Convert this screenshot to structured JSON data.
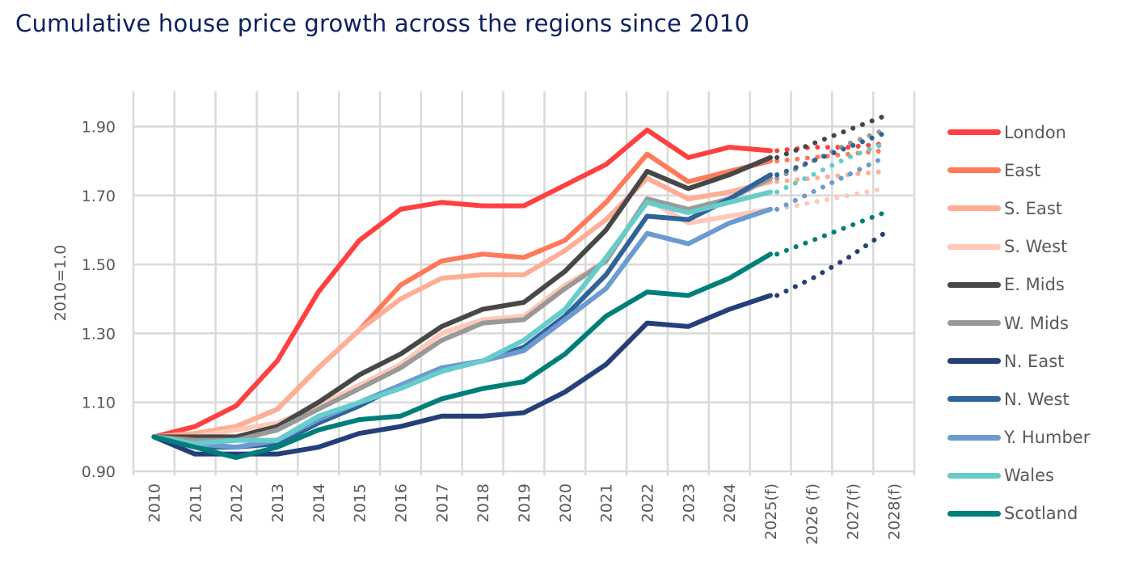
{
  "title": "Cumulative house price growth across the regions since 2010",
  "chart_data": {
    "type": "line",
    "title": "Cumulative house price growth across the regions since 2010",
    "xlabel": "",
    "ylabel": "2010=1.0",
    "ylim": [
      0.9,
      2.0
    ],
    "yticks": [
      "0.90",
      "1.10",
      "1.30",
      "1.50",
      "1.70",
      "1.90"
    ],
    "ytick_values": [
      0.9,
      1.1,
      1.3,
      1.5,
      1.7,
      1.9
    ],
    "grid": true,
    "legend_position": "right",
    "categories": [
      "2010",
      "2011",
      "2012",
      "2013",
      "2014",
      "2015",
      "2016",
      "2017",
      "2018",
      "2019",
      "2020",
      "2021",
      "2022",
      "2023",
      "2024",
      "2025(f)",
      "2026 (f)",
      "2027(f)",
      "2028(f)"
    ],
    "actual_through": "2025(f)",
    "forecast_style": "dotted",
    "series": [
      {
        "name": "London",
        "color": "#ff4040",
        "values": [
          1.0,
          1.03,
          1.09,
          1.22,
          1.42,
          1.57,
          1.66,
          1.68,
          1.67,
          1.67,
          1.73,
          1.79,
          1.89,
          1.81,
          1.84,
          1.83
        ],
        "forecast": [
          1.83,
          1.84,
          1.84,
          1.85
        ]
      },
      {
        "name": "East",
        "color": "#ff7a59",
        "values": [
          1.0,
          1.01,
          1.03,
          1.08,
          1.2,
          1.31,
          1.44,
          1.51,
          1.53,
          1.52,
          1.57,
          1.68,
          1.82,
          1.74,
          1.77,
          1.8
        ],
        "forecast": [
          1.8,
          1.81,
          1.82,
          1.83
        ]
      },
      {
        "name": "S. East",
        "color": "#ffae96",
        "values": [
          1.0,
          1.01,
          1.03,
          1.08,
          1.2,
          1.31,
          1.4,
          1.46,
          1.47,
          1.47,
          1.54,
          1.63,
          1.75,
          1.69,
          1.71,
          1.74
        ],
        "forecast": [
          1.74,
          1.75,
          1.76,
          1.77
        ]
      },
      {
        "name": "S. West",
        "color": "#ffc8b8",
        "values": [
          1.0,
          1.0,
          1.02,
          1.04,
          1.09,
          1.15,
          1.21,
          1.3,
          1.34,
          1.35,
          1.44,
          1.51,
          1.69,
          1.62,
          1.64,
          1.66
        ],
        "forecast": [
          1.66,
          1.68,
          1.7,
          1.72
        ]
      },
      {
        "name": "E. Mids",
        "color": "#474747",
        "values": [
          1.0,
          1.0,
          1.0,
          1.03,
          1.1,
          1.18,
          1.24,
          1.32,
          1.37,
          1.39,
          1.48,
          1.6,
          1.77,
          1.72,
          1.76,
          1.81
        ],
        "forecast": [
          1.81,
          1.85,
          1.89,
          1.93
        ]
      },
      {
        "name": "W. Mids",
        "color": "#999999",
        "values": [
          1.0,
          0.99,
          0.99,
          1.02,
          1.08,
          1.14,
          1.2,
          1.28,
          1.33,
          1.34,
          1.43,
          1.51,
          1.69,
          1.66,
          1.69,
          1.75
        ],
        "forecast": [
          1.75,
          1.8,
          1.85,
          1.89
        ]
      },
      {
        "name": "N. East",
        "color": "#243f7a",
        "values": [
          1.0,
          0.95,
          0.95,
          0.95,
          0.97,
          1.01,
          1.03,
          1.06,
          1.06,
          1.07,
          1.13,
          1.21,
          1.33,
          1.32,
          1.37,
          1.41
        ],
        "forecast": [
          1.41,
          1.46,
          1.52,
          1.59
        ]
      },
      {
        "name": "N. West",
        "color": "#2f6399",
        "values": [
          1.0,
          0.97,
          0.97,
          0.98,
          1.04,
          1.09,
          1.15,
          1.2,
          1.22,
          1.26,
          1.35,
          1.47,
          1.64,
          1.63,
          1.69,
          1.76
        ],
        "forecast": [
          1.76,
          1.8,
          1.84,
          1.88
        ]
      },
      {
        "name": "Y. Humber",
        "color": "#6b9bd1",
        "values": [
          1.0,
          0.98,
          0.97,
          0.99,
          1.05,
          1.1,
          1.15,
          1.2,
          1.22,
          1.25,
          1.34,
          1.43,
          1.59,
          1.56,
          1.62,
          1.66
        ],
        "forecast": [
          1.66,
          1.71,
          1.76,
          1.81
        ]
      },
      {
        "name": "Wales",
        "color": "#66cccc",
        "values": [
          1.0,
          0.98,
          0.99,
          0.99,
          1.06,
          1.1,
          1.14,
          1.19,
          1.22,
          1.28,
          1.37,
          1.52,
          1.68,
          1.65,
          1.68,
          1.71
        ],
        "forecast": [
          1.71,
          1.76,
          1.81,
          1.85
        ]
      },
      {
        "name": "Scotland",
        "color": "#007f7a",
        "values": [
          1.0,
          0.97,
          0.94,
          0.97,
          1.02,
          1.05,
          1.06,
          1.11,
          1.14,
          1.16,
          1.24,
          1.35,
          1.42,
          1.41,
          1.46,
          1.53
        ],
        "forecast": [
          1.53,
          1.57,
          1.61,
          1.65
        ]
      }
    ]
  }
}
